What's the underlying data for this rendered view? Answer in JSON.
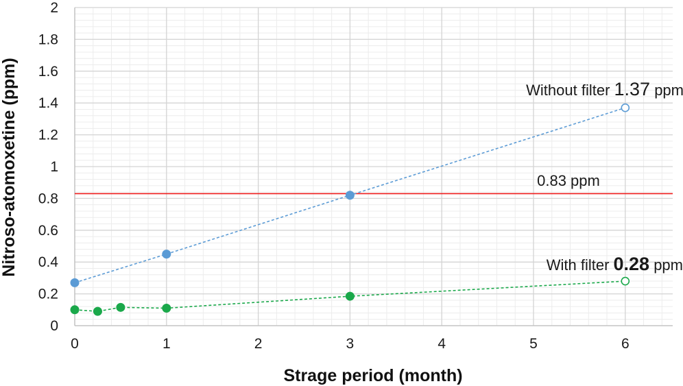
{
  "chart_data": {
    "type": "scatter",
    "xlabel": "Strage period (month)",
    "ylabel": "Nitroso-atomoxetine (ppm)",
    "xlim": [
      0,
      6.5
    ],
    "ylim": [
      0,
      2
    ],
    "x_ticks": [
      0,
      1,
      2,
      3,
      4,
      5,
      6
    ],
    "y_ticks": [
      "0",
      "0.2",
      "0.4",
      "0.6",
      "0.8",
      "1",
      "1.2",
      "1.4",
      "1.6",
      "1.8",
      "2"
    ],
    "grid": true,
    "series": [
      {
        "color": "#5b9bd5",
        "line_style": "dashed",
        "points": [
          {
            "x": 0,
            "y": 0.27,
            "marker": "filled"
          },
          {
            "x": 1,
            "y": 0.45,
            "marker": "filled"
          },
          {
            "x": 3,
            "y": 0.82,
            "marker": "filled"
          },
          {
            "x": 6,
            "y": 1.37,
            "marker": "open"
          }
        ]
      },
      {
        "color": "#1aa84a",
        "line_style": "dashed",
        "points": [
          {
            "x": 0,
            "y": 0.1,
            "marker": "filled"
          },
          {
            "x": 0.25,
            "y": 0.09,
            "marker": "filled"
          },
          {
            "x": 0.5,
            "y": 0.115,
            "marker": "filled"
          },
          {
            "x": 1,
            "y": 0.11,
            "marker": "filled"
          },
          {
            "x": 3,
            "y": 0.185,
            "marker": "filled"
          },
          {
            "x": 6,
            "y": 0.28,
            "marker": "open"
          }
        ]
      }
    ],
    "reference_line": {
      "y": 0.83,
      "color": "#ee1c1c",
      "label": "0.83 ppm"
    },
    "annotations": {
      "without_filter": {
        "prefix": "Without filter ",
        "value": "1.37",
        "suffix": " ppm"
      },
      "with_filter": {
        "prefix": "With filter ",
        "value": "0.28",
        "suffix": " ppm"
      }
    }
  }
}
